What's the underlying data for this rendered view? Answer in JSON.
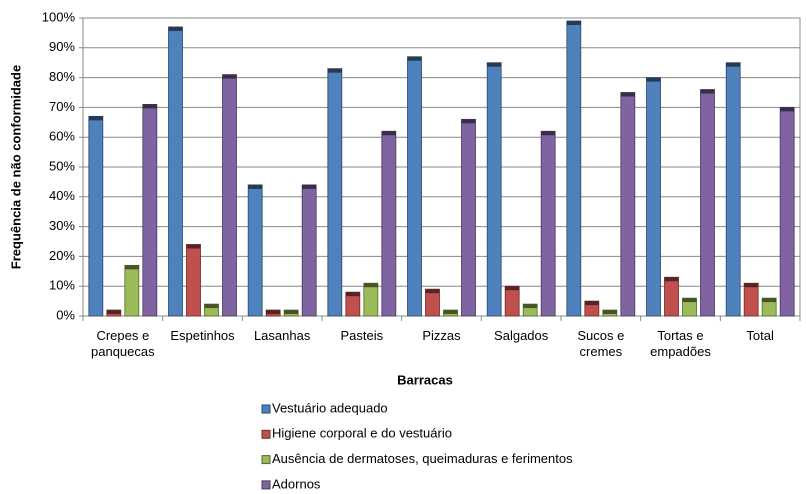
{
  "chart_data": {
    "type": "bar",
    "x_label": "Barracas",
    "y_label": "Frequência de não conformidade",
    "categories": [
      "Crepes e panquecas",
      "Espetinhos",
      "Lasanhas",
      "Pasteis",
      "Pizzas",
      "Salgados",
      "Sucos e cremes",
      "Tortas e empadões",
      "Total"
    ],
    "series": [
      {
        "name": "Vestuário adequado",
        "color": "#4f81bd",
        "values": [
          67,
          97,
          44,
          83,
          87,
          85,
          99,
          80,
          85
        ]
      },
      {
        "name": "Higiene corporal e do vestuário",
        "color": "#c0504d",
        "values": [
          2,
          24,
          2,
          8,
          9,
          10,
          5,
          13,
          11
        ]
      },
      {
        "name": "Ausência de dermatoses, queimaduras e ferimentos",
        "color": "#9bbb59",
        "values": [
          17,
          4,
          2,
          11,
          2,
          4,
          2,
          6,
          6
        ]
      },
      {
        "name": "Adornos",
        "color": "#8064a2",
        "values": [
          71,
          81,
          44,
          62,
          66,
          62,
          75,
          76,
          70
        ]
      }
    ],
    "ylim": [
      0,
      100
    ],
    "yticks": [
      {
        "value": 0,
        "label": "0%"
      },
      {
        "value": 10,
        "label": "10%"
      },
      {
        "value": 20,
        "label": "20%"
      },
      {
        "value": 30,
        "label": "30%"
      },
      {
        "value": 40,
        "label": "40%"
      },
      {
        "value": 50,
        "label": "50%"
      },
      {
        "value": 60,
        "label": "60%"
      },
      {
        "value": 70,
        "label": "70%"
      },
      {
        "value": 80,
        "label": "80%"
      },
      {
        "value": 90,
        "label": "90%"
      },
      {
        "value": 100,
        "label": "100%"
      }
    ],
    "grid": true,
    "legend": "bottom"
  }
}
